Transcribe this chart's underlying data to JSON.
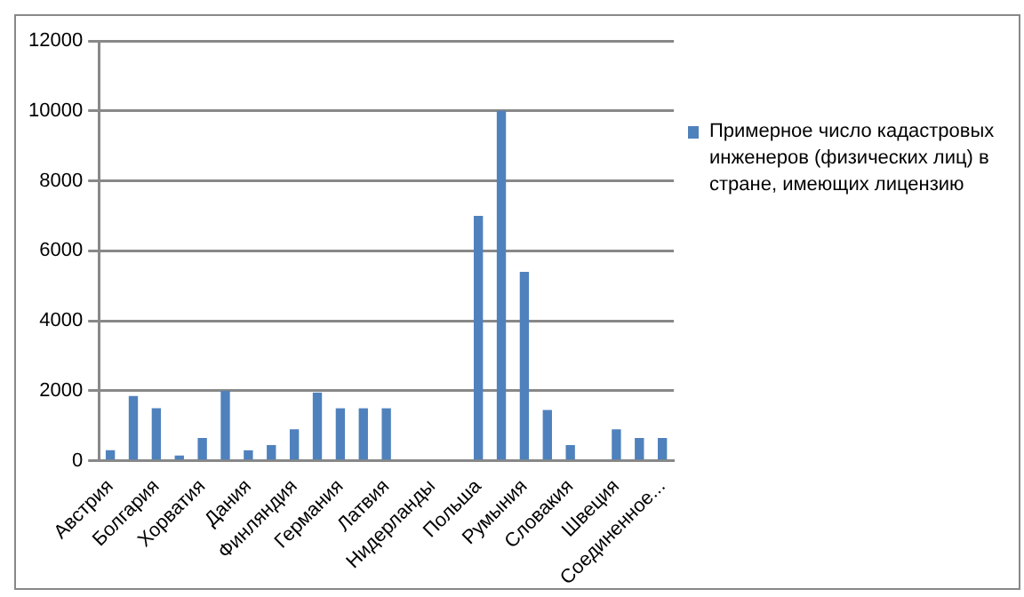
{
  "chart_data": {
    "type": "bar",
    "categories": [
      "Австрия",
      null,
      "Болгария",
      null,
      "Хорватия",
      null,
      "Дания",
      null,
      "Финляндия",
      null,
      "Германия",
      null,
      "Латвия",
      null,
      "Нидерланды",
      null,
      "Польша",
      null,
      "Румыния",
      null,
      "Словакия",
      null,
      "Швеция",
      null,
      "Соединенное..."
    ],
    "series": [
      {
        "name": "Примерное число кадастровых инженеров (физических лиц) в стране, имеющих лицензию",
        "color": "#4f81bd",
        "values": [
          300,
          1850,
          1500,
          150,
          650,
          2000,
          300,
          450,
          900,
          1950,
          1500,
          1500,
          1500,
          null,
          null,
          null,
          7000,
          10000,
          5400,
          1450,
          450,
          null,
          900,
          650,
          650
        ]
      }
    ],
    "ylim": [
      0,
      12000
    ],
    "yticks": [
      0,
      2000,
      4000,
      6000,
      8000,
      10000,
      12000
    ],
    "grid": "y",
    "legend": "right"
  }
}
